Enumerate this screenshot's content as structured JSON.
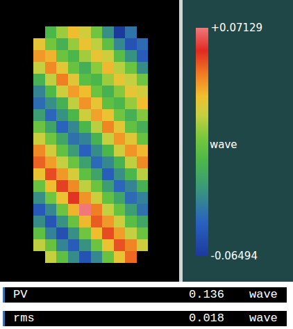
{
  "chart_data": {
    "type": "heatmap",
    "tick_labels": false,
    "cells": [
      [
        null,
        -0.008,
        0.012,
        0.031,
        0.022,
        0.003,
        -0.028,
        -0.06494,
        -0.038,
        null
      ],
      [
        0.027,
        0.004,
        -0.012,
        0.011,
        0.029,
        0.018,
        -0.002,
        -0.031,
        -0.052,
        -0.041
      ],
      [
        0.038,
        0.033,
        0.002,
        -0.009,
        0.013,
        0.028,
        0.021,
        -0.004,
        -0.027,
        -0.048
      ],
      [
        0.019,
        0.041,
        0.027,
        0.001,
        -0.013,
        0.009,
        0.032,
        0.017,
        0.002,
        -0.029
      ],
      [
        -0.011,
        0.018,
        0.043,
        0.026,
        -0.003,
        -0.008,
        0.012,
        0.028,
        0.019,
        0.003
      ],
      [
        -0.032,
        -0.007,
        0.021,
        0.037,
        0.031,
        0.002,
        -0.011,
        0.008,
        0.027,
        0.022
      ],
      [
        -0.041,
        -0.028,
        -0.012,
        0.018,
        0.039,
        0.028,
        -0.002,
        -0.009,
        0.011,
        0.031
      ],
      [
        -0.022,
        -0.043,
        -0.027,
        -0.008,
        0.021,
        0.036,
        0.029,
        0.003,
        -0.012,
        0.008
      ],
      [
        0.002,
        -0.019,
        -0.044,
        -0.031,
        -0.009,
        0.017,
        0.042,
        0.027,
        -0.001,
        -0.013
      ],
      [
        0.021,
        0.003,
        -0.018,
        -0.039,
        -0.033,
        -0.011,
        0.019,
        0.038,
        0.026,
        0.001
      ],
      [
        0.041,
        0.022,
        -0.001,
        -0.023,
        -0.046,
        -0.029,
        -0.008,
        0.021,
        0.039,
        0.032
      ],
      [
        0.048,
        0.037,
        0.019,
        0.002,
        -0.021,
        -0.042,
        -0.031,
        -0.011,
        0.018,
        0.041
      ],
      [
        0.029,
        0.052,
        0.038,
        0.023,
        -0.002,
        -0.019,
        -0.047,
        -0.028,
        -0.009,
        0.017
      ],
      [
        0.001,
        0.031,
        0.054,
        0.041,
        0.018,
        0.002,
        -0.022,
        -0.043,
        -0.032,
        -0.012
      ],
      [
        -0.028,
        0.003,
        0.029,
        0.056,
        0.039,
        0.021,
        -0.001,
        -0.018,
        -0.041,
        -0.033
      ],
      [
        -0.049,
        -0.031,
        0.002,
        0.033,
        0.07129,
        0.043,
        0.019,
        0.001,
        -0.022,
        -0.039
      ],
      [
        -0.029,
        -0.051,
        -0.027,
        0.001,
        0.032,
        0.049,
        0.038,
        0.021,
        -0.003,
        -0.018
      ],
      [
        -0.002,
        -0.033,
        -0.053,
        -0.028,
        0.003,
        0.031,
        0.052,
        0.037,
        0.019,
        0.002
      ],
      [
        0.018,
        0.001,
        -0.032,
        -0.048,
        -0.027,
        0.002,
        0.029,
        0.051,
        0.042,
        0.021
      ],
      [
        null,
        0.019,
        -0.002,
        -0.029,
        -0.052,
        -0.031,
        0.001,
        0.028,
        0.047,
        null
      ]
    ],
    "colorbar": {
      "range": [
        -0.06494,
        0.07129
      ],
      "ticks": [
        {
          "value": 0.07129,
          "label": "+0.07129"
        },
        -0.06494
      ],
      "label": "wave"
    }
  },
  "stats": [
    {
      "label": "PV",
      "value": 0.136,
      "unit": "wave"
    },
    {
      "label": "rms",
      "value": 0.018,
      "unit": "wave"
    }
  ]
}
